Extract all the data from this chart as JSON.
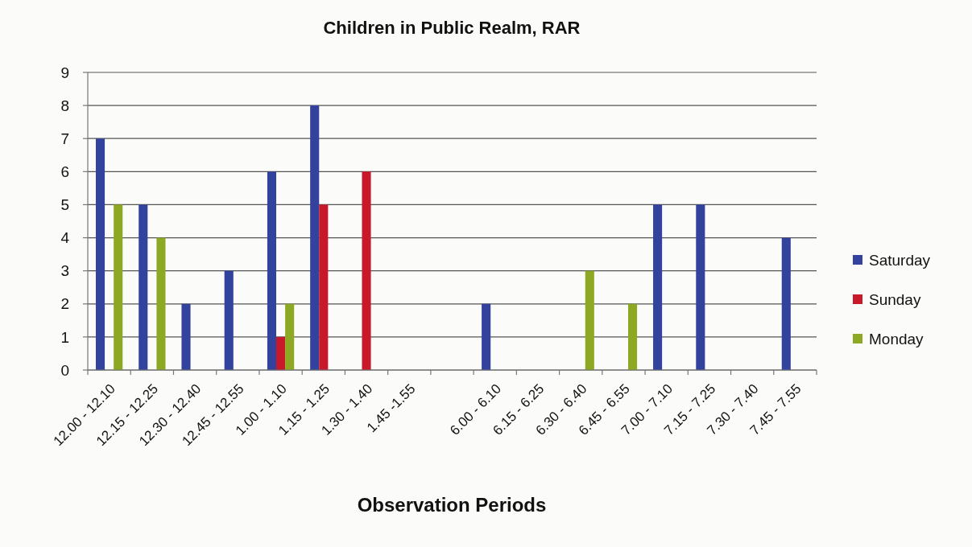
{
  "chart_data": {
    "type": "bar",
    "title": "Children in Public Realm, RAR",
    "xlabel": "Observation Periods",
    "categories": [
      "12.00 - 12.10",
      "12.15 - 12.25",
      "12.30 - 12.40",
      "12.45 - 12.55",
      "1.00 - 1.10",
      "1.15 - 1.25",
      "1.30 - 1.40",
      "1.45 -1.55",
      null,
      "6.00 - 6.10",
      "6.15 - 6.25",
      "6.30 - 6.40",
      "6.45 - 6.55",
      "7.00 - 7.10",
      "7.15 - 7.25",
      "7.30 - 7.40",
      "7.45 - 7.55"
    ],
    "series": [
      {
        "name": "Saturday",
        "color": "#33429c",
        "values": [
          7,
          5,
          2,
          3,
          6,
          8,
          null,
          null,
          null,
          2,
          null,
          null,
          null,
          5,
          5,
          null,
          4
        ]
      },
      {
        "name": "Sunday",
        "color": "#c8192b",
        "values": [
          null,
          null,
          null,
          null,
          1,
          5,
          6,
          null,
          null,
          null,
          null,
          null,
          null,
          null,
          null,
          null,
          null
        ]
      },
      {
        "name": "Monday",
        "color": "#8da924",
        "values": [
          5,
          4,
          null,
          null,
          2,
          null,
          null,
          null,
          null,
          null,
          null,
          3,
          2,
          null,
          null,
          null,
          null
        ]
      }
    ],
    "ylim": [
      0,
      9
    ],
    "yticks": [
      0,
      1,
      2,
      3,
      4,
      5,
      6,
      7,
      8,
      9
    ],
    "grid": "y",
    "legend": "right"
  }
}
